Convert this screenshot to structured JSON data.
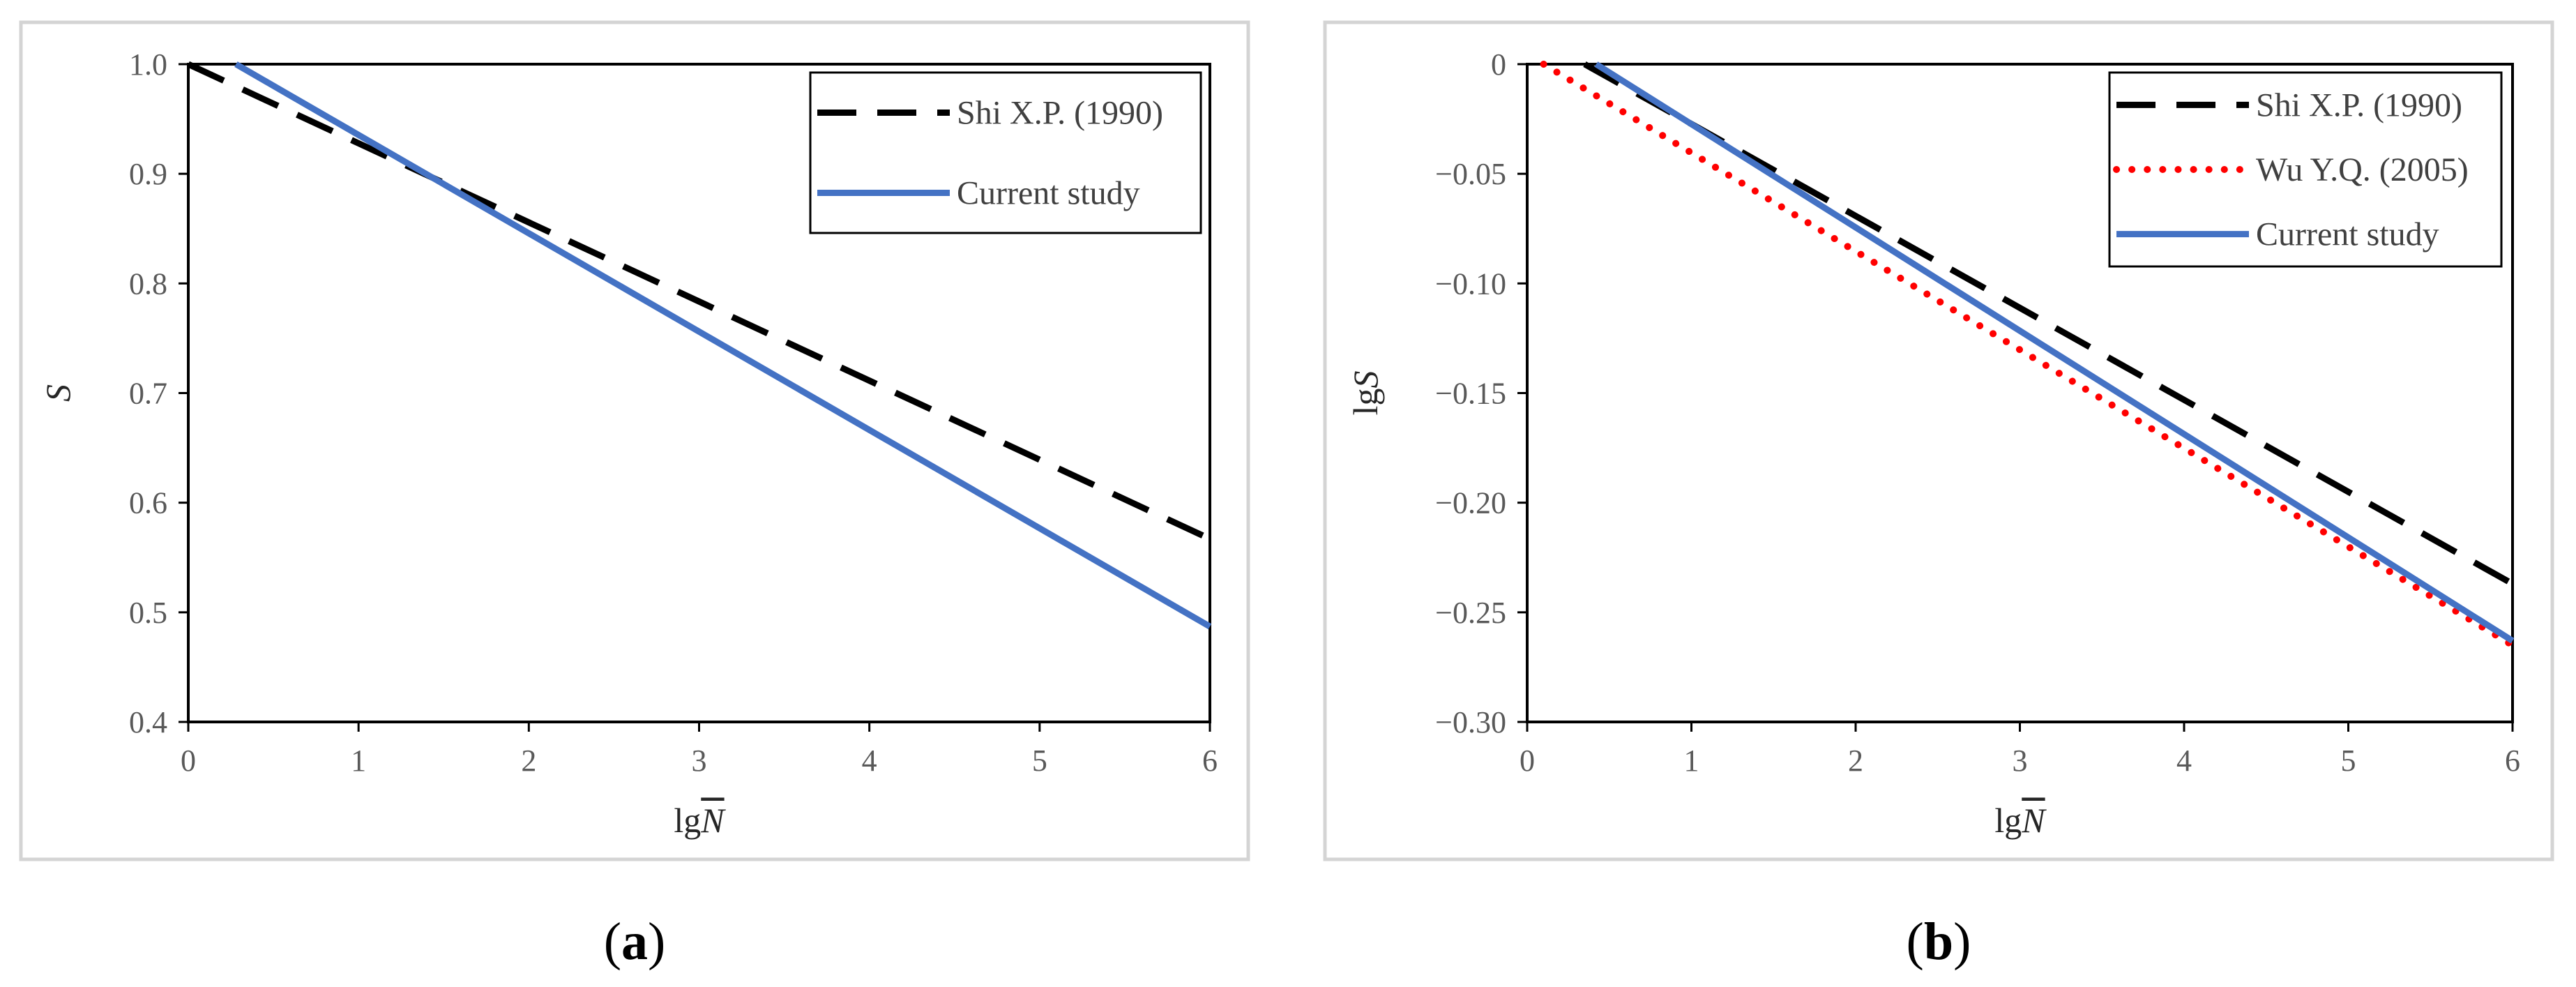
{
  "chart_data": [
    {
      "type": "line",
      "panel": "a",
      "caption_letter": "a",
      "xlabel_prefix": "lg",
      "xlabel_var": "N",
      "ylabel": "S",
      "xlim": [
        0,
        6
      ],
      "ylim": [
        0.4,
        1.0
      ],
      "x_ticks": [
        0,
        1,
        2,
        3,
        4,
        5,
        6
      ],
      "y_ticks": [
        0.4,
        0.5,
        0.6,
        0.7,
        0.8,
        0.9,
        1.0
      ],
      "y_tick_labels": [
        "0.4",
        "0.5",
        "0.6",
        "0.7",
        "0.8",
        "0.9",
        "1.0"
      ],
      "legend_position": "top-right",
      "series": [
        {
          "name": "Shi X.P. (1990)",
          "style": "dashed",
          "color": "#000000",
          "x": [
            0,
            6
          ],
          "y": [
            1.0,
            0.567
          ]
        },
        {
          "name": "Current study",
          "style": "solid",
          "color": "#4472C4",
          "x": [
            0.28,
            6
          ],
          "y": [
            1.0,
            0.487
          ]
        }
      ]
    },
    {
      "type": "line",
      "panel": "b",
      "caption_letter": "b",
      "xlabel_prefix": "lg",
      "xlabel_var": "N",
      "ylabel": "lgS",
      "xlim": [
        0,
        6
      ],
      "ylim": [
        -0.3,
        0
      ],
      "x_ticks": [
        0,
        1,
        2,
        3,
        4,
        5,
        6
      ],
      "y_ticks": [
        0,
        -0.05,
        -0.1,
        -0.15,
        -0.2,
        -0.25,
        -0.3
      ],
      "y_tick_labels": [
        "0",
        "−0.05",
        "−0.10",
        "−0.15",
        "−0.20",
        "−0.25",
        "−0.30"
      ],
      "legend_position": "top-right",
      "series": [
        {
          "name": "Shi X.P. (1990)",
          "style": "dashed",
          "color": "#000000",
          "x": [
            0.35,
            6
          ],
          "y": [
            0,
            -0.237
          ]
        },
        {
          "name": "Wu Y.Q. (2005)",
          "style": "dotted",
          "color": "#FF0000",
          "x": [
            0.1,
            6
          ],
          "y": [
            0,
            -0.265
          ]
        },
        {
          "name": "Current study",
          "style": "solid",
          "color": "#4472C4",
          "x": [
            0.42,
            6
          ],
          "y": [
            0,
            -0.263
          ]
        }
      ]
    }
  ]
}
